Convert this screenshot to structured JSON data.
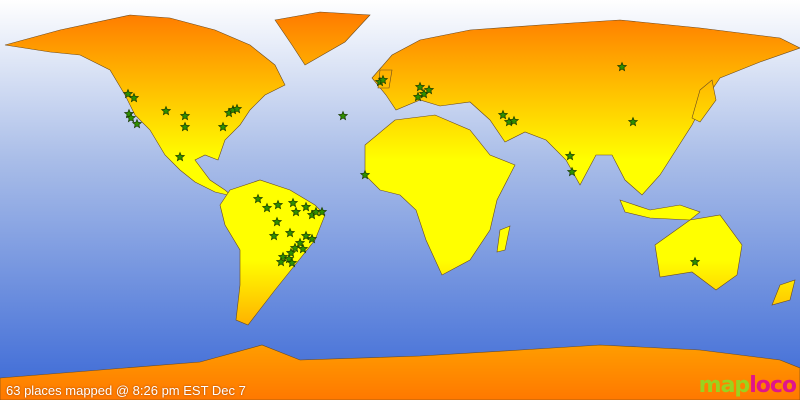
{
  "status_text": "63 places mapped @ 8:26 pm EST Dec 7",
  "logo": {
    "part1": "map",
    "part2": "loco"
  },
  "colors": {
    "ocean_top": "#ffffff",
    "ocean_bottom": "#3a68d6",
    "land_warm": "#ff7800",
    "land_light": "#ffff00",
    "marker": "#2f8f00"
  },
  "marker_icon": "star-icon",
  "places_count": 63
}
